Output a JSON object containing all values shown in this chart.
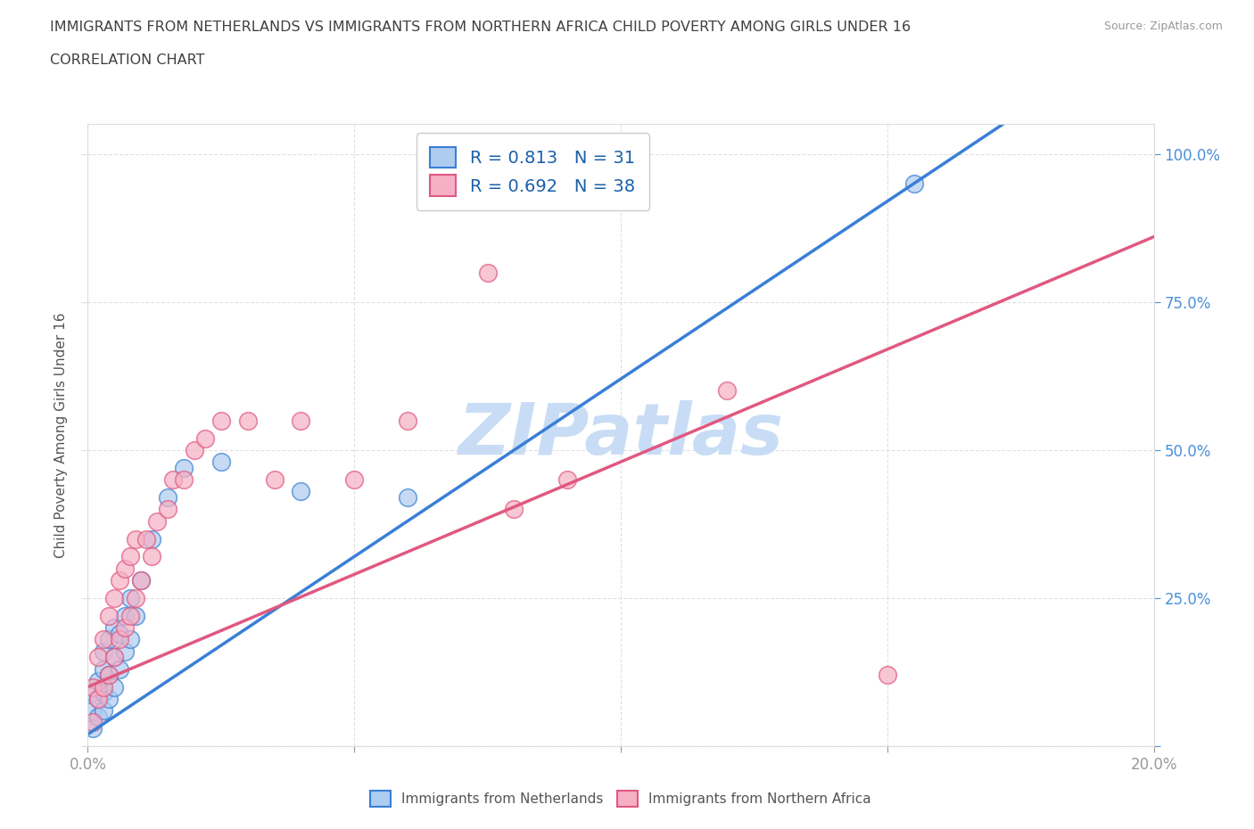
{
  "title_line1": "IMMIGRANTS FROM NETHERLANDS VS IMMIGRANTS FROM NORTHERN AFRICA CHILD POVERTY AMONG GIRLS UNDER 16",
  "title_line2": "CORRELATION CHART",
  "source_text": "Source: ZipAtlas.com",
  "ylabel": "Child Poverty Among Girls Under 16",
  "xlim": [
    0.0,
    0.2
  ],
  "ylim": [
    0.0,
    1.05
  ],
  "netherlands_color": "#aecbf0",
  "netherlands_line_color": "#3a7fd5",
  "n_africa_color": "#f5b0c5",
  "n_africa_line_color": "#e05880",
  "dashed_line_color": "#e8a0b8",
  "watermark_color": "#c8ddf5",
  "R_netherlands": 0.813,
  "N_netherlands": 31,
  "R_n_africa": 0.692,
  "N_n_africa": 38,
  "netherlands_scatter_x": [
    0.001,
    0.001,
    0.001,
    0.002,
    0.002,
    0.002,
    0.003,
    0.003,
    0.003,
    0.003,
    0.004,
    0.004,
    0.004,
    0.005,
    0.005,
    0.005,
    0.006,
    0.006,
    0.007,
    0.007,
    0.008,
    0.008,
    0.009,
    0.01,
    0.012,
    0.015,
    0.018,
    0.025,
    0.04,
    0.06,
    0.155
  ],
  "netherlands_scatter_y": [
    0.03,
    0.06,
    0.09,
    0.05,
    0.08,
    0.11,
    0.06,
    0.09,
    0.13,
    0.16,
    0.08,
    0.12,
    0.18,
    0.1,
    0.15,
    0.2,
    0.13,
    0.19,
    0.16,
    0.22,
    0.18,
    0.25,
    0.22,
    0.28,
    0.35,
    0.42,
    0.47,
    0.48,
    0.43,
    0.42,
    0.95
  ],
  "n_africa_scatter_x": [
    0.001,
    0.001,
    0.002,
    0.002,
    0.003,
    0.003,
    0.004,
    0.004,
    0.005,
    0.005,
    0.006,
    0.006,
    0.007,
    0.007,
    0.008,
    0.008,
    0.009,
    0.009,
    0.01,
    0.011,
    0.012,
    0.013,
    0.015,
    0.016,
    0.018,
    0.02,
    0.022,
    0.025,
    0.03,
    0.035,
    0.04,
    0.05,
    0.06,
    0.075,
    0.08,
    0.09,
    0.12,
    0.15
  ],
  "n_africa_scatter_y": [
    0.04,
    0.1,
    0.08,
    0.15,
    0.1,
    0.18,
    0.12,
    0.22,
    0.15,
    0.25,
    0.18,
    0.28,
    0.2,
    0.3,
    0.22,
    0.32,
    0.25,
    0.35,
    0.28,
    0.35,
    0.32,
    0.38,
    0.4,
    0.45,
    0.45,
    0.5,
    0.52,
    0.55,
    0.55,
    0.45,
    0.55,
    0.45,
    0.55,
    0.8,
    0.4,
    0.45,
    0.6,
    0.12
  ],
  "grid_color": "#e0e0e0",
  "grid_linestyle": "--",
  "background_color": "#ffffff",
  "title_color": "#404040",
  "legend_text_color": "#1a5fa8",
  "tick_color": "#4a90d9",
  "nl_line_slope": 6.0,
  "nl_line_intercept": 0.02,
  "na_line_slope": 3.8,
  "na_line_intercept": 0.1
}
